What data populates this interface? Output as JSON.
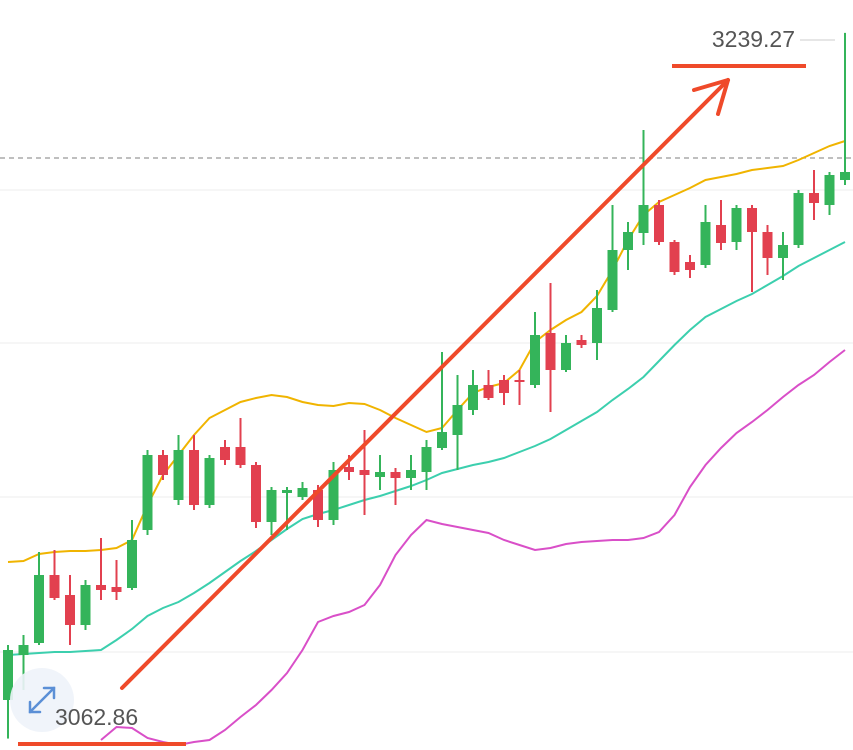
{
  "chart_data": {
    "type": "candlestick",
    "up_color": "#34b45a",
    "down_color": "#e2404f",
    "ylim": [
      3060,
      3247.5
    ],
    "reference_line": 3208,
    "open": [
      3072.5,
      3083.75,
      3086.75,
      3103.75,
      3098.75,
      3091.25,
      3101.25,
      3100.75,
      3100.5,
      3115,
      3133.75,
      3122.5,
      3135,
      3121.25,
      3135.75,
      3135.75,
      3131.25,
      3117,
      3124.25,
      3123.25,
      3125,
      3117.5,
      3130.75,
      3130,
      3128.25,
      3129.5,
      3128,
      3129.5,
      3135.5,
      3138.75,
      3145,
      3151.25,
      3152.5,
      3152.5,
      3151.25,
      3164.25,
      3155,
      3162.5,
      3161.75,
      3170,
      3185,
      3189.25,
      3196.25,
      3187,
      3182,
      3181.25,
      3191.25,
      3187,
      3195.5,
      3189.5,
      3183,
      3186.25,
      3199.25,
      3196.25,
      3202.5
    ],
    "high": [
      3086.25,
      3088.75,
      3109.5,
      3110,
      3103.75,
      3102.5,
      3113,
      3107.5,
      3117.5,
      3135,
      3135,
      3138.75,
      3138.75,
      3133.75,
      3137.5,
      3143,
      3132,
      3125.75,
      3125.75,
      3127,
      3126.25,
      3132,
      3133.75,
      3140,
      3133.75,
      3130.5,
      3133.75,
      3137.5,
      3159.5,
      3153.75,
      3155,
      3155,
      3153.75,
      3155,
      3169.5,
      3176.75,
      3163.75,
      3163.75,
      3175,
      3196.25,
      3192,
      3215,
      3197.5,
      3187.5,
      3183.75,
      3196.25,
      3197.5,
      3196.25,
      3196.25,
      3191.25,
      3189.5,
      3200,
      3205,
      3204.5,
      3239.27
    ],
    "low": [
      3062.86,
      3075,
      3086.25,
      3097.5,
      3086.25,
      3090,
      3097.5,
      3097.5,
      3100,
      3113.75,
      3127.5,
      3121.25,
      3120,
      3120.5,
      3131.25,
      3130.5,
      3115.5,
      3113.75,
      3115,
      3122.5,
      3115.75,
      3116.25,
      3127.5,
      3118.75,
      3125,
      3121.25,
      3125,
      3125,
      3135,
      3130,
      3143.75,
      3147.5,
      3146.25,
      3146.25,
      3150.5,
      3144.5,
      3154.5,
      3160.5,
      3157.5,
      3169.5,
      3180,
      3186.25,
      3186.25,
      3178.75,
      3178,
      3180.5,
      3185,
      3185,
      3174.5,
      3178.75,
      3177.5,
      3185.5,
      3192.5,
      3193.75,
      3201.25
    ],
    "close": [
      3085,
      3086.25,
      3103.75,
      3098,
      3091.25,
      3101.25,
      3100,
      3099.5,
      3112.5,
      3133.75,
      3128.75,
      3135,
      3121.25,
      3133,
      3132.5,
      3131.25,
      3117,
      3125,
      3125,
      3125.5,
      3117.5,
      3130,
      3129.5,
      3128.75,
      3129.5,
      3128,
      3130,
      3135.75,
      3139.5,
      3146.25,
      3151.25,
      3148,
      3149.25,
      3152,
      3163.75,
      3155,
      3161.75,
      3161.25,
      3170.5,
      3185,
      3189.5,
      3196.25,
      3187,
      3179.5,
      3180,
      3192,
      3186.75,
      3195.5,
      3189.5,
      3183,
      3186.25,
      3199.25,
      3196.75,
      3203.75,
      3204.5
    ],
    "lines": [
      {
        "color": "#f0b400",
        "values": [
          3107,
          3107.25,
          3109,
          3109.5,
          3109.75,
          3109.75,
          3110,
          3110.5,
          3112.5,
          3121.25,
          3128.75,
          3133.75,
          3138.75,
          3143,
          3145,
          3147,
          3148,
          3148.75,
          3148.25,
          3147,
          3146.25,
          3146,
          3146.75,
          3146.5,
          3145,
          3143,
          3141.25,
          3139.5,
          3140.5,
          3145,
          3149.25,
          3150.75,
          3151.75,
          3155,
          3162,
          3165,
          3167.5,
          3169.5,
          3173.5,
          3180,
          3187.5,
          3193.75,
          3197,
          3198.75,
          3200.5,
          3202.5,
          3203.25,
          3204,
          3205,
          3205.5,
          3206,
          3207.5,
          3209.25,
          3211,
          3212.25
        ]
      },
      {
        "color": "#3ccfae",
        "values": [
          3083.75,
          3084,
          3084.25,
          3084.5,
          3084.5,
          3084.75,
          3085,
          3087.5,
          3090.25,
          3093.5,
          3095.5,
          3097,
          3099.25,
          3101.75,
          3104.5,
          3107.25,
          3109.75,
          3112.5,
          3115.25,
          3117.75,
          3119,
          3120,
          3121.25,
          3122.5,
          3123.5,
          3124.75,
          3126,
          3127.5,
          3129.25,
          3130.25,
          3131.25,
          3132,
          3133,
          3134.5,
          3136,
          3137.75,
          3140,
          3142.25,
          3144.5,
          3147.5,
          3150.25,
          3153.25,
          3157.25,
          3161.25,
          3165,
          3168.25,
          3170.25,
          3172.25,
          3174,
          3176.25,
          3178.5,
          3181,
          3183,
          3185,
          3187
        ]
      },
      {
        "color": "#d94fc8",
        "values": [
          null,
          null,
          null,
          null,
          null,
          null,
          3062.5,
          3065.75,
          3065.5,
          3063,
          3062,
          3061.25,
          3062,
          3062.5,
          3065,
          3068.25,
          3071.25,
          3075,
          3079.25,
          3085,
          3092,
          3093.5,
          3094.5,
          3096.25,
          3101.25,
          3108.75,
          3113.75,
          3117.5,
          3116.5,
          3115.75,
          3115,
          3114.25,
          3112.5,
          3111.25,
          3110,
          3110.5,
          3111.5,
          3112,
          3112.25,
          3112.5,
          3112.5,
          3113,
          3114.5,
          3118.75,
          3125.75,
          3131.25,
          3135.5,
          3139.25,
          3142,
          3145,
          3148.25,
          3151.25,
          3153.75,
          3157,
          3160
        ]
      }
    ]
  }
}
